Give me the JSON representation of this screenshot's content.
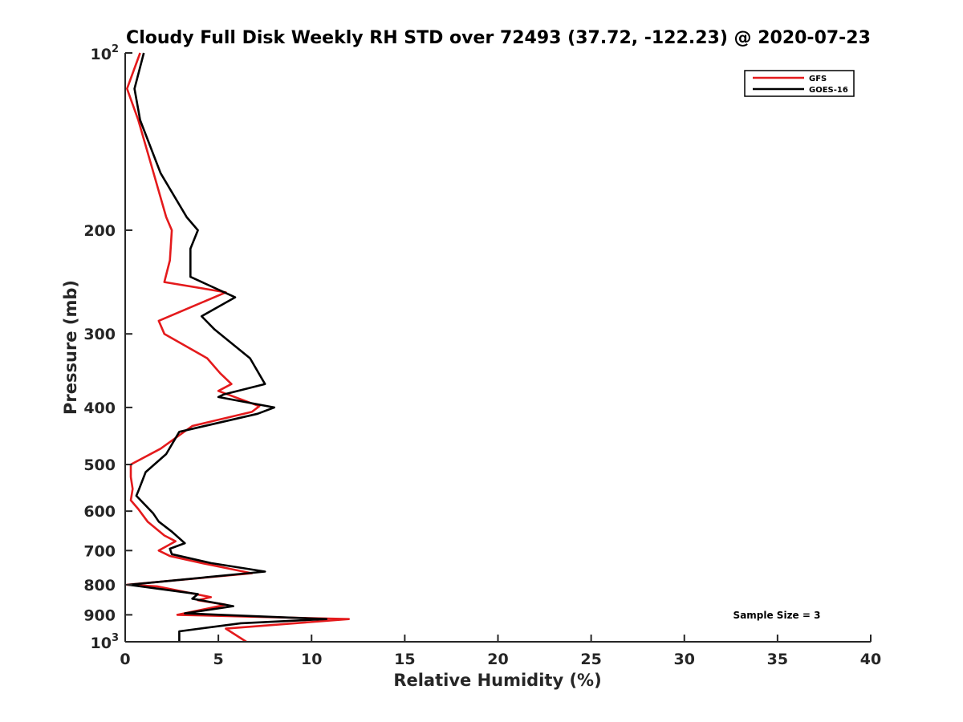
{
  "chart_data": {
    "type": "line",
    "title": "Cloudy Full Disk Weekly RH STD over 72493 (37.72, -122.23) @ 2020-07-23",
    "xlabel": "Relative Humidity (%)",
    "ylabel": "Pressure (mb)",
    "xlim": [
      0,
      40
    ],
    "ylim": [
      100,
      1000
    ],
    "yscale": "log",
    "y_reversed": true,
    "grid": false,
    "legend_position": "top-right",
    "x_ticks": [
      "0",
      "5",
      "10",
      "15",
      "20",
      "25",
      "30",
      "35",
      "40"
    ],
    "x_tick_values": [
      0,
      5,
      10,
      15,
      20,
      25,
      30,
      35,
      40
    ],
    "y_ticks": [
      {
        "value": 100,
        "base": "10",
        "exp": "2"
      },
      {
        "value": 200,
        "label": "200"
      },
      {
        "value": 300,
        "label": "300"
      },
      {
        "value": 400,
        "label": "400"
      },
      {
        "value": 500,
        "label": "500"
      },
      {
        "value": 600,
        "label": "600"
      },
      {
        "value": 700,
        "label": "700"
      },
      {
        "value": 800,
        "label": "800"
      },
      {
        "value": 900,
        "label": "900"
      },
      {
        "value": 1000,
        "base": "10",
        "exp": "3"
      }
    ],
    "annotation": "Sample Size = 3",
    "series": [
      {
        "name": "GFS",
        "color": "#e41a1c",
        "points": [
          [
            0.8,
            100
          ],
          [
            0.1,
            115
          ],
          [
            0.7,
            130
          ],
          [
            1.4,
            155
          ],
          [
            2.2,
            190
          ],
          [
            2.5,
            200
          ],
          [
            2.4,
            225
          ],
          [
            2.1,
            245
          ],
          [
            5.4,
            255
          ],
          [
            1.8,
            285
          ],
          [
            2.1,
            300
          ],
          [
            4.4,
            330
          ],
          [
            5.1,
            350
          ],
          [
            5.7,
            365
          ],
          [
            5.0,
            375
          ],
          [
            7.2,
            398
          ],
          [
            6.8,
            407
          ],
          [
            3.6,
            430
          ],
          [
            1.9,
            470
          ],
          [
            0.3,
            500
          ],
          [
            0.3,
            525
          ],
          [
            0.4,
            550
          ],
          [
            0.3,
            575
          ],
          [
            0.7,
            595
          ],
          [
            1.2,
            625
          ],
          [
            2.1,
            660
          ],
          [
            2.7,
            675
          ],
          [
            1.8,
            700
          ],
          [
            2.4,
            715
          ],
          [
            4.1,
            735
          ],
          [
            6.8,
            765
          ],
          [
            0.1,
            800
          ],
          [
            1.7,
            805
          ],
          [
            4.6,
            840
          ],
          [
            3.9,
            850
          ],
          [
            5.4,
            865
          ],
          [
            2.8,
            900
          ],
          [
            12.0,
            915
          ],
          [
            5.4,
            950
          ],
          [
            6.5,
            1000
          ]
        ]
      },
      {
        "name": "GOES-16",
        "color": "#000000",
        "points": [
          [
            1.0,
            100
          ],
          [
            0.5,
            115
          ],
          [
            0.8,
            130
          ],
          [
            1.9,
            160
          ],
          [
            3.3,
            190
          ],
          [
            3.9,
            200
          ],
          [
            3.5,
            215
          ],
          [
            3.5,
            240
          ],
          [
            5.9,
            260
          ],
          [
            4.1,
            280
          ],
          [
            4.8,
            295
          ],
          [
            6.7,
            330
          ],
          [
            7.5,
            365
          ],
          [
            5.3,
            380
          ],
          [
            5.0,
            384
          ],
          [
            8.0,
            400
          ],
          [
            7.1,
            410
          ],
          [
            2.9,
            440
          ],
          [
            2.2,
            480
          ],
          [
            1.1,
            515
          ],
          [
            0.7,
            555
          ],
          [
            0.6,
            565
          ],
          [
            1.5,
            605
          ],
          [
            1.8,
            625
          ],
          [
            2.5,
            650
          ],
          [
            3.2,
            680
          ],
          [
            2.4,
            695
          ],
          [
            2.5,
            710
          ],
          [
            4.6,
            735
          ],
          [
            7.5,
            760
          ],
          [
            0.2,
            800
          ],
          [
            3.9,
            830
          ],
          [
            3.6,
            845
          ],
          [
            5.8,
            870
          ],
          [
            3.2,
            895
          ],
          [
            10.8,
            915
          ],
          [
            6.2,
            930
          ],
          [
            2.9,
            960
          ],
          [
            2.9,
            1000
          ]
        ]
      }
    ]
  }
}
